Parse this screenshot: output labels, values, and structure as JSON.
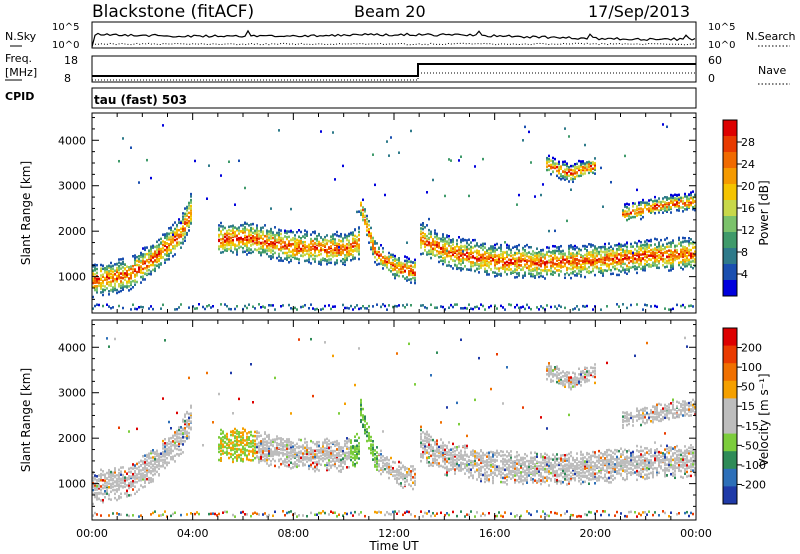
{
  "header": {
    "station": "Blackstone (fitACF)",
    "beam": "Beam 20",
    "date": "17/Sep/2013"
  },
  "top_panels": {
    "nsky_label": "N.Sky",
    "nsky_ticks": [
      "10^5",
      "10^0"
    ],
    "nsearch_label": "N.Search",
    "nsearch_ticks": [
      "10^5",
      "10^0"
    ],
    "freq_label_1": "Freq.",
    "freq_label_2": "[MHz]",
    "freq_ticks": [
      "18",
      "8"
    ],
    "nave_label": "Nave",
    "nave_ticks": [
      "60",
      "0"
    ],
    "cpid_label": "CPID",
    "cpid_value": "tau (fast) 503"
  },
  "chart_data": [
    {
      "type": "heatmap",
      "title": "",
      "xlabel": "Time UT",
      "ylabel": "Slant Range [km]",
      "x_ticks": [
        "00:00",
        "04:00",
        "08:00",
        "12:00",
        "16:00",
        "20:00",
        "00:00"
      ],
      "xlim": [
        0,
        24
      ],
      "ylim": [
        200,
        4600
      ],
      "y_ticks": [
        "1000",
        "2000",
        "3000",
        "4000"
      ],
      "colorbar_label": "Power [dB]",
      "colorbar_ticks": [
        "28",
        "24",
        "20",
        "16",
        "12",
        "8",
        "4"
      ],
      "colorbar_colors": [
        "#0000dd",
        "#1a4fb0",
        "#2e7a8a",
        "#3f9a6a",
        "#7bc26b",
        "#c8d84a",
        "#f5c400",
        "#f59a00",
        "#f06a00",
        "#e83a00",
        "#dd0000"
      ],
      "data_gap_hours": [
        12.8,
        13.0
      ],
      "echo_bands": [
        {
          "name": "",
          "t": [
            0.0,
            1.5,
            2.5,
            3.5,
            3.9
          ],
          "range_km": [
            950,
            1100,
            1500,
            2000,
            2500
          ]
        },
        {
          "name": "",
          "t": [
            5.0,
            6.0,
            8.0,
            10.0,
            10.6
          ],
          "range_km": [
            1850,
            1900,
            1700,
            1650,
            1800
          ]
        },
        {
          "name": "",
          "t": [
            10.6,
            11.2,
            12.0,
            12.8
          ],
          "range_km": [
            2700,
            1600,
            1250,
            1150
          ]
        },
        {
          "name": "",
          "t": [
            13.0,
            14.0,
            16.0,
            18.0,
            20.0,
            22.0,
            24.0
          ],
          "range_km": [
            1900,
            1600,
            1400,
            1350,
            1400,
            1500,
            1550
          ]
        },
        {
          "name": "",
          "t": [
            18.0,
            19.0,
            20.0
          ],
          "range_km": [
            3500,
            3300,
            3500
          ]
        },
        {
          "name": "",
          "t": [
            21.0,
            22.5,
            24.0
          ],
          "range_km": [
            2400,
            2600,
            2700
          ]
        }
      ]
    },
    {
      "type": "heatmap",
      "title": "",
      "xlabel": "Time UT",
      "ylabel": "Slant Range [km]",
      "x_ticks": [
        "00:00",
        "04:00",
        "08:00",
        "12:00",
        "16:00",
        "20:00",
        "00:00"
      ],
      "xlim": [
        0,
        24
      ],
      "ylim": [
        200,
        4600
      ],
      "y_ticks": [
        "1000",
        "2000",
        "3000",
        "4000"
      ],
      "colorbar_label": "Velocity [m s⁻¹]",
      "colorbar_ticks": [
        "200",
        "100",
        "50",
        "15",
        "-15",
        "-50",
        "-100",
        "-200"
      ],
      "colorbar_colors": [
        "#1f3aa8",
        "#2d6fb8",
        "#2e8b57",
        "#7ccd3c",
        "#bdbdbd",
        "#bdbdbd",
        "#f5a000",
        "#f07000",
        "#ea3b00",
        "#dd0000"
      ],
      "data_gap_hours": [
        12.8,
        13.0
      ]
    }
  ]
}
